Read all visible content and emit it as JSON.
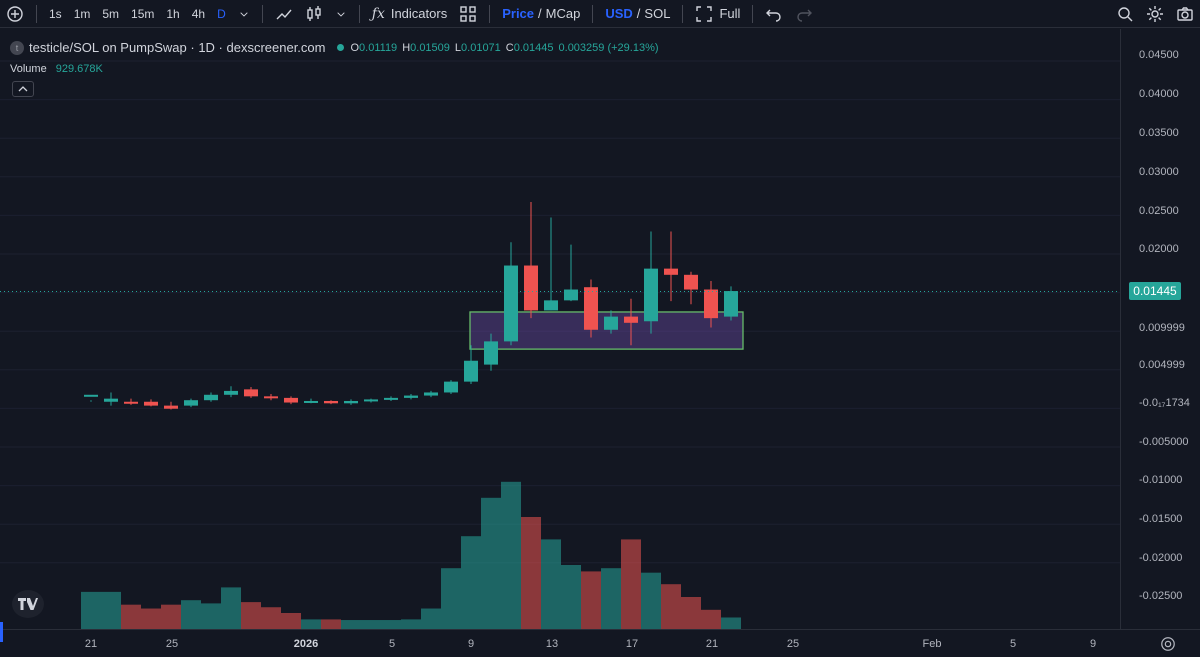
{
  "toolbar": {
    "intervals": [
      "1s",
      "1m",
      "5m",
      "15m",
      "1h",
      "4h",
      "D"
    ],
    "active_interval": "D",
    "indicators_label": "Indicators",
    "price_label": "Price",
    "slash": "/",
    "mcap_label": "MCap",
    "usd_label": "USD",
    "sol_label": "SOL",
    "full_label": "Full"
  },
  "legend": {
    "symbol_icon": "t",
    "title": "testicle/SOL on PumpSwap · 1D · dexscreener.com",
    "o_key": "O",
    "o_val": "0.01119",
    "h_key": "H",
    "h_val": "0.01509",
    "l_key": "L",
    "l_val": "0.01071",
    "c_key": "C",
    "c_val": "0.01445",
    "change": "0.003259 (+29.13%)",
    "volume_label": "Volume",
    "volume_value": "929.678K",
    "collapse_icon": "chevron-up-icon"
  },
  "price_scale": {
    "labels": [
      "0.04500",
      "0.04000",
      "0.03500",
      "0.03000",
      "0.02500",
      "0.02000",
      "0.009999",
      "0.004999",
      "-0.0₁₇1734",
      "-0.005000",
      "-0.01000",
      "-0.01500",
      "-0.02000",
      "-0.02500"
    ],
    "last_price": "0.01445"
  },
  "time_scale": {
    "labels": [
      "21",
      "25",
      "2026",
      "5",
      "9",
      "13",
      "17",
      "21",
      "25",
      "Feb",
      "5",
      "9"
    ]
  },
  "colors": {
    "up": "#26a69a",
    "down": "#ef5350",
    "background": "#131722",
    "accent": "#2962ff"
  },
  "chart_data": {
    "type": "candlestick",
    "series": [
      {
        "name": "testicle/SOL",
        "ohlc": [
          [
            0.0009,
            0.0011,
            0.0004,
            0.0002
          ],
          [
            0.0002,
            0.0006,
            0.0014,
            -0.0003
          ],
          [
            0.0002,
            0.0001,
            0.0006,
            -0.0002
          ],
          [
            0.0002,
            -0.0003,
            0.0005,
            -0.0004
          ],
          [
            -0.0003,
            -0.0007,
            0.0002,
            -0.0008
          ],
          [
            -0.0003,
            0.0004,
            0.0006,
            -0.0005
          ],
          [
            0.0004,
            0.0011,
            0.0014,
            0.0002
          ],
          [
            0.0011,
            0.0016,
            0.0022,
            0.0008
          ],
          [
            0.0018,
            0.0009,
            0.0021,
            0.0007
          ],
          [
            0.0009,
            0.0007,
            0.0012,
            0.0004
          ],
          [
            0.0007,
            0.0001,
            0.0009,
            -0.0001
          ],
          [
            0.0001,
            0.0003,
            0.0006,
            0.0
          ],
          [
            0.0003,
            0.0,
            0.0004,
            -0.0001
          ],
          [
            0.0,
            0.0003,
            0.0005,
            -0.0002
          ],
          [
            0.0003,
            0.0005,
            0.0006,
            0.0001
          ],
          [
            0.0005,
            0.0007,
            0.0009,
            0.0003
          ],
          [
            0.0007,
            0.001,
            0.0012,
            0.0005
          ],
          [
            0.001,
            0.0014,
            0.0016,
            0.0008
          ],
          [
            0.0014,
            0.0028,
            0.003,
            0.0012
          ],
          [
            0.0028,
            0.0055,
            0.0075,
            0.0025
          ],
          [
            0.005,
            0.008,
            0.009,
            0.0042
          ],
          [
            0.008,
            0.0178,
            0.0208,
            0.0075
          ],
          [
            0.0178,
            0.012,
            0.026,
            0.011
          ],
          [
            0.012,
            0.0133,
            0.024,
            0.012
          ],
          [
            0.0133,
            0.0147,
            0.0205,
            0.0132
          ],
          [
            0.015,
            0.0095,
            0.016,
            0.0085
          ],
          [
            0.0095,
            0.0112,
            0.012,
            0.009
          ],
          [
            0.0112,
            0.0104,
            0.0135,
            0.0075
          ],
          [
            0.0106,
            0.0174,
            0.0222,
            0.009
          ],
          [
            0.0174,
            0.0166,
            0.0222,
            0.0132
          ],
          [
            0.0166,
            0.0147,
            0.017,
            0.0128
          ],
          [
            0.0147,
            0.011,
            0.0158,
            0.0098
          ],
          [
            0.0112,
            0.0145,
            0.0151,
            0.0107
          ]
        ]
      },
      {
        "name": "Volume",
        "values": [
          58,
          58,
          38,
          32,
          38,
          45,
          40,
          65,
          42,
          34,
          25,
          15,
          15,
          14,
          14,
          14,
          15,
          32,
          95,
          145,
          205,
          230,
          175,
          140,
          100,
          90,
          95,
          140,
          88,
          70,
          50,
          30,
          18
        ]
      }
    ],
    "ylim": [
      -0.028,
      0.047
    ],
    "last_value": 0.01445,
    "zone": {
      "x_start_index": 19,
      "x_end_index": 32,
      "y_low": 0.007,
      "y_high": 0.0118
    }
  }
}
